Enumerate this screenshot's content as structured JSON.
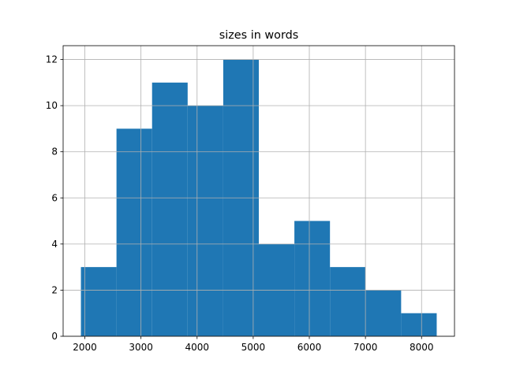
{
  "chart_data": {
    "type": "histogram",
    "title": "sizes in words",
    "bins": [
      1930,
      2564,
      3198,
      3832,
      4466,
      5100,
      5734,
      6368,
      7002,
      7636,
      8270
    ],
    "values": [
      3,
      9,
      11,
      10,
      12,
      4,
      5,
      3,
      2,
      1
    ],
    "color": "#1f77b4",
    "xlim": [
      1613,
      8587
    ],
    "xticks": [
      2000,
      3000,
      4000,
      5000,
      6000,
      7000,
      8000
    ],
    "ylim": [
      0,
      12.6
    ],
    "yticks": [
      0,
      2,
      4,
      6,
      8,
      10,
      12
    ],
    "grid": true
  }
}
